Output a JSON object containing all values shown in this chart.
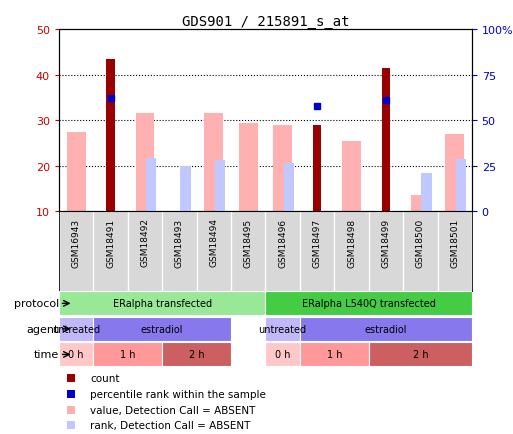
{
  "title": "GDS901 / 215891_s_at",
  "samples": [
    "GSM16943",
    "GSM18491",
    "GSM18492",
    "GSM18493",
    "GSM18494",
    "GSM18495",
    "GSM18496",
    "GSM18497",
    "GSM18498",
    "GSM18499",
    "GSM18500",
    "GSM18501"
  ],
  "count_values": [
    null,
    43.5,
    null,
    null,
    null,
    null,
    null,
    29.0,
    null,
    41.5,
    null,
    null
  ],
  "percentile_rank_values": [
    null,
    62.0,
    null,
    null,
    null,
    null,
    null,
    58.0,
    null,
    61.0,
    null,
    null
  ],
  "value_absent": [
    27.5,
    null,
    31.5,
    null,
    31.5,
    29.5,
    29.0,
    null,
    25.5,
    null,
    13.5,
    27.0
  ],
  "rank_absent": [
    null,
    null,
    29.0,
    25.0,
    28.0,
    null,
    26.5,
    null,
    null,
    null,
    21.0,
    28.5
  ],
  "ylim_left": [
    10,
    50
  ],
  "ylim_right": [
    0,
    100
  ],
  "left_ticks": [
    10,
    20,
    30,
    40,
    50
  ],
  "right_ticks": [
    0,
    25,
    50,
    75,
    100
  ],
  "right_tick_labels": [
    "0",
    "25",
    "50",
    "75",
    "100%"
  ],
  "color_count": "#990000",
  "color_rank": "#0000CC",
  "color_value_absent": "#FFB0B0",
  "color_rank_absent": "#C0C8FF",
  "background_color": "#FFFFFF",
  "left_axis_color": "#CC0000",
  "right_axis_color": "#0000CC",
  "protocol_blocks": [
    {
      "label": "ERalpha transfected",
      "start": 0,
      "end": 5,
      "color": "#98E898"
    },
    {
      "label": "ERalpha L540Q transfected",
      "start": 6,
      "end": 11,
      "color": "#44CC44"
    }
  ],
  "agent_blocks": [
    {
      "label": "untreated",
      "start": 0,
      "end": 0,
      "color": "#C0B8F8"
    },
    {
      "label": "estradiol",
      "start": 1,
      "end": 4,
      "color": "#8878EE"
    },
    {
      "label": "untreated",
      "start": 6,
      "end": 6,
      "color": "#C0B8F8"
    },
    {
      "label": "estradiol",
      "start": 7,
      "end": 11,
      "color": "#8878EE"
    }
  ],
  "time_blocks": [
    {
      "label": "0 h",
      "start": 0,
      "end": 0,
      "color": "#FFC8C8"
    },
    {
      "label": "1 h",
      "start": 1,
      "end": 2,
      "color": "#FF9898"
    },
    {
      "label": "2 h",
      "start": 3,
      "end": 4,
      "color": "#CC6060"
    },
    {
      "label": "0 h",
      "start": 6,
      "end": 6,
      "color": "#FFC8C8"
    },
    {
      "label": "1 h",
      "start": 7,
      "end": 8,
      "color": "#FF9898"
    },
    {
      "label": "2 h",
      "start": 9,
      "end": 11,
      "color": "#CC6060"
    }
  ],
  "legend_items": [
    {
      "color": "#990000",
      "label": "count"
    },
    {
      "color": "#0000CC",
      "label": "percentile rank within the sample"
    },
    {
      "color": "#FFB0B0",
      "label": "value, Detection Call = ABSENT"
    },
    {
      "color": "#C0C8FF",
      "label": "rank, Detection Call = ABSENT"
    }
  ]
}
